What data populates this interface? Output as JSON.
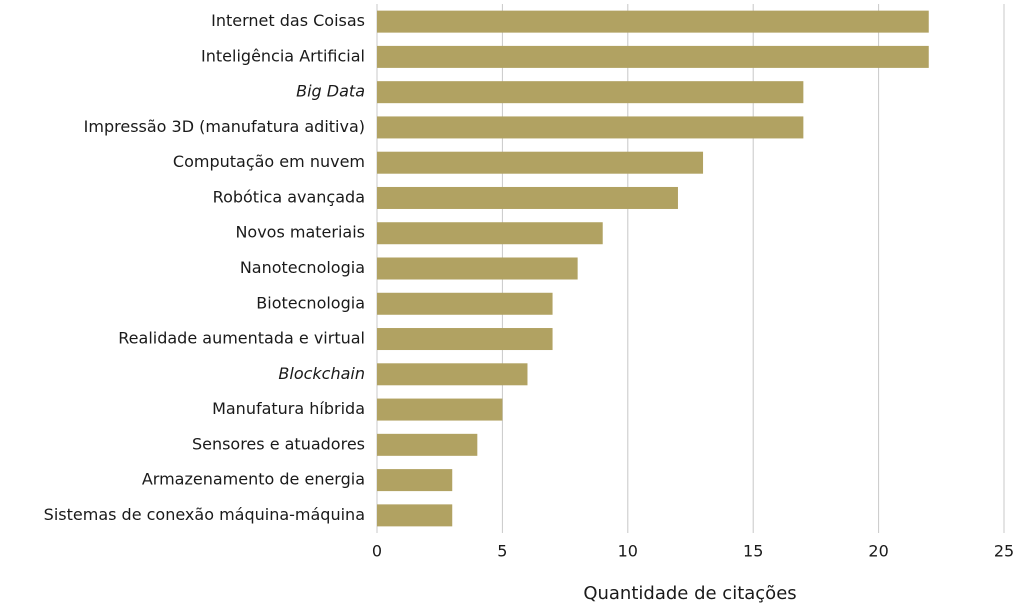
{
  "chart_data": {
    "type": "bar",
    "orientation": "horizontal",
    "categories": [
      "Internet das Coisas",
      "Inteligência Artificial",
      "Big Data",
      "Impressão 3D (manufatura aditiva)",
      "Computação em nuvem",
      "Robótica avançada",
      "Novos materiais",
      "Nanotecnologia",
      "Biotecnologia",
      "Realidade aumentada e virtual",
      "Blockchain",
      "Manufatura híbrida",
      "Sensores e atuadores",
      "Armazenamento de energia",
      "Sistemas de conexão máquina-máquina"
    ],
    "category_styles": [
      "normal",
      "normal",
      "italic",
      "normal",
      "normal",
      "normal",
      "normal",
      "normal",
      "normal",
      "normal",
      "italic",
      "normal",
      "normal",
      "normal",
      "normal"
    ],
    "values": [
      22,
      22,
      17,
      17,
      13,
      12,
      9,
      8,
      7,
      7,
      6,
      5,
      4,
      3,
      3
    ],
    "color": "#b1a262",
    "x_label": "Quantidade de citações",
    "xlim": [
      0,
      25
    ],
    "xticks": [
      0,
      5,
      10,
      15,
      20,
      25
    ],
    "grid": true
  }
}
